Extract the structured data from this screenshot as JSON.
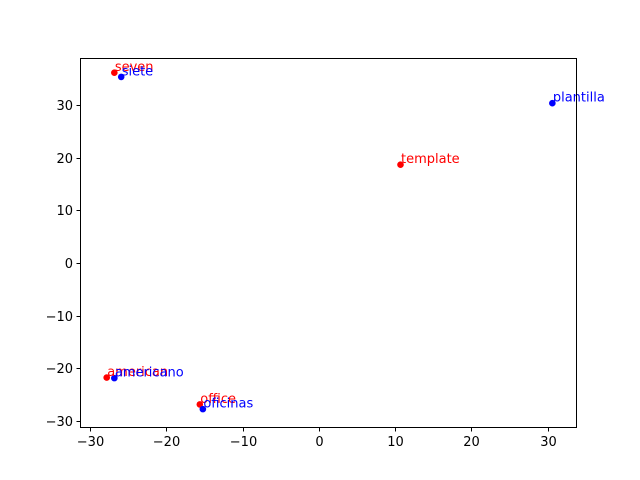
{
  "chart_data": {
    "type": "scatter",
    "title": "",
    "xlabel": "",
    "ylabel": "",
    "xlim": [
      -31.3,
      33.7
    ],
    "ylim": [
      -31.2,
      39.0
    ],
    "xticks": [
      -30,
      -20,
      -10,
      0,
      10,
      20,
      30
    ],
    "yticks": [
      -30,
      -20,
      -10,
      0,
      10,
      20,
      30
    ],
    "xtick_labels": [
      "−30",
      "−20",
      "−10",
      "0",
      "10",
      "20",
      "30"
    ],
    "ytick_labels": [
      "−30",
      "−20",
      "−10",
      "0",
      "10",
      "20",
      "30"
    ],
    "grid": false,
    "legend": false,
    "series": [
      {
        "color": "#ff0000",
        "points": [
          {
            "label": "seven",
            "x": -26.8,
            "y": 36.2
          },
          {
            "label": "template",
            "x": 10.7,
            "y": 18.7
          },
          {
            "label": "american",
            "x": -27.8,
            "y": -21.8
          },
          {
            "label": "office",
            "x": -15.6,
            "y": -26.9
          }
        ]
      },
      {
        "color": "#0000ff",
        "points": [
          {
            "label": "siete",
            "x": -25.9,
            "y": 35.4
          },
          {
            "label": "plantilla",
            "x": 30.6,
            "y": 30.4
          },
          {
            "label": "americano",
            "x": -26.8,
            "y": -21.9
          },
          {
            "label": "oficinas",
            "x": -15.2,
            "y": -27.8
          }
        ]
      }
    ]
  }
}
